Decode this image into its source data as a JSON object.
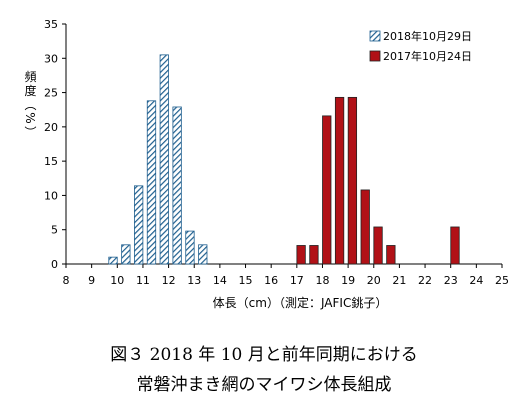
{
  "chart_data": {
    "type": "bar",
    "xlabel": "体長（cm）（測定：JAFIC銚子）",
    "ylabel": "頻度（%）",
    "ylim": [
      0,
      35
    ],
    "yticks": [
      0,
      5,
      10,
      15,
      20,
      25,
      30,
      35
    ],
    "xlim": [
      8,
      25
    ],
    "xticks": [
      8,
      9,
      10,
      11,
      12,
      13,
      14,
      15,
      16,
      17,
      18,
      19,
      20,
      21,
      22,
      23,
      24,
      25
    ],
    "bar_width": 0.33,
    "legend_position": "top-right",
    "series": [
      {
        "name": "2018年10月29日",
        "color": "#1f5f8f",
        "pattern": "diagonal-hatch",
        "x": [
          9.833,
          10.333,
          10.833,
          11.333,
          11.833,
          12.333,
          12.833,
          13.333
        ],
        "values": [
          1.0,
          2.8,
          11.4,
          23.8,
          30.5,
          22.9,
          4.8,
          2.8
        ]
      },
      {
        "name": "2017年10月24日",
        "color": "#b11117",
        "pattern": "solid",
        "x": [
          17.167,
          17.667,
          18.167,
          18.667,
          19.167,
          19.667,
          20.167,
          20.667,
          23.167
        ],
        "values": [
          2.7,
          2.7,
          21.6,
          24.3,
          24.3,
          10.8,
          5.4,
          2.7,
          5.4
        ]
      }
    ]
  },
  "caption": {
    "line1": "図３ 2018 年 10 月と前年同期における",
    "line2": "常磐沖まき網のマイワシ体長組成"
  }
}
